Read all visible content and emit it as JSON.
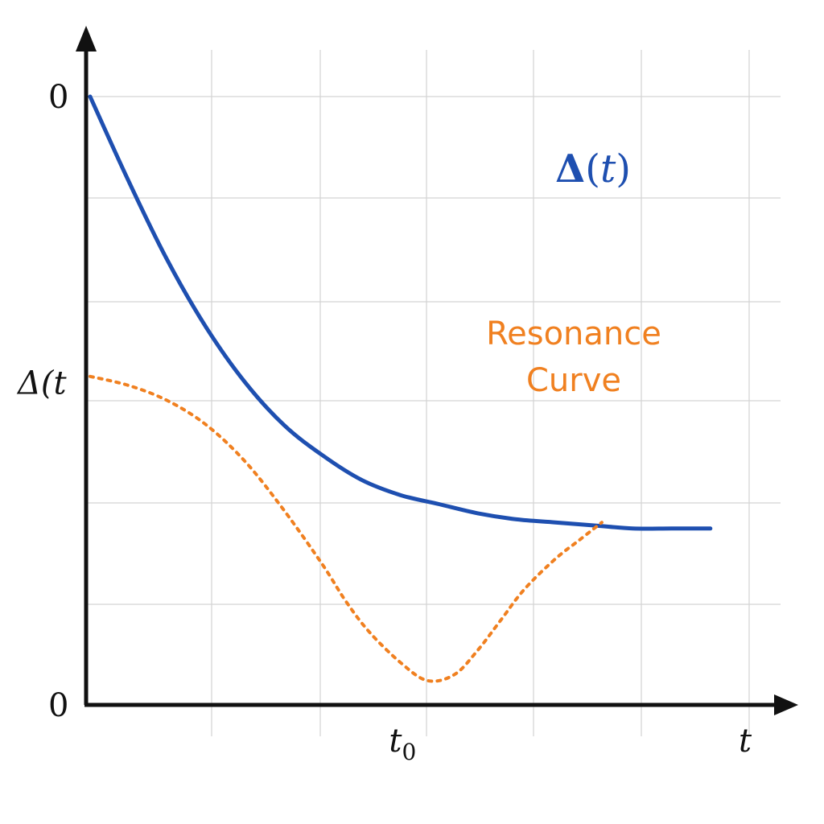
{
  "chart_data": {
    "type": "line",
    "title": "",
    "xlabel": "t",
    "ylabel": "",
    "x_ticks": [
      {
        "x": 4.0,
        "label": "t",
        "sub": "0"
      }
    ],
    "x_end_label": "t",
    "y_ticks": [
      {
        "y": 1.0,
        "label": "0"
      },
      {
        "y": 0.53,
        "label": "Δ(t"
      },
      {
        "y": 0.0,
        "label": "0"
      }
    ],
    "xlim": [
      0,
      8.5
    ],
    "ylim": [
      0,
      1.0
    ],
    "grid": true,
    "legend_label": {
      "main": "Δ",
      "paren_open": "(",
      "var": "t",
      "paren_close": ")"
    },
    "annotation": {
      "line1": "Resonance",
      "line2": "Curve"
    },
    "series": [
      {
        "style": "solid",
        "color": "#1e4fb0",
        "x": [
          0,
          0.5,
          1.0,
          1.5,
          2.0,
          2.5,
          3.0,
          3.5,
          4.0,
          4.5,
          5.0,
          5.5,
          6.0,
          6.5,
          7.0,
          7.5,
          8.0
        ],
        "y": [
          1.0,
          0.86,
          0.73,
          0.62,
          0.53,
          0.46,
          0.41,
          0.37,
          0.345,
          0.33,
          0.315,
          0.305,
          0.3,
          0.295,
          0.29,
          0.29,
          0.29
        ]
      },
      {
        "style": "dotted",
        "color": "#f08020",
        "x": [
          0,
          0.5,
          1.0,
          1.5,
          2.0,
          2.5,
          3.0,
          3.3,
          3.6,
          4.0,
          4.35,
          4.7,
          5.0,
          5.3,
          5.6,
          6.0,
          6.3,
          6.6
        ],
        "y": [
          0.54,
          0.525,
          0.5,
          0.46,
          0.4,
          0.32,
          0.23,
          0.17,
          0.12,
          0.07,
          0.04,
          0.05,
          0.09,
          0.14,
          0.19,
          0.24,
          0.27,
          0.3
        ]
      }
    ]
  }
}
